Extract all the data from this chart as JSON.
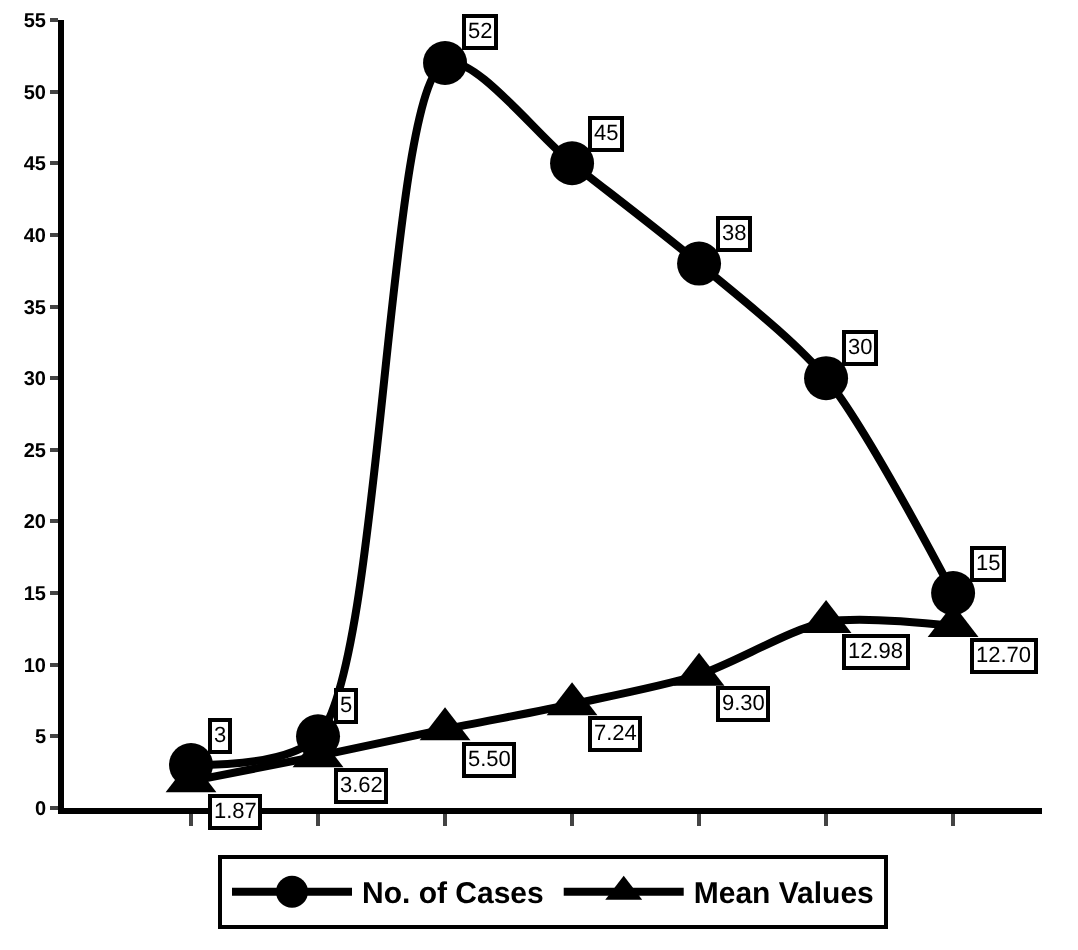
{
  "chart_data": {
    "type": "line",
    "categories": [
      null,
      null,
      null,
      null,
      null,
      null,
      null
    ],
    "series": [
      {
        "name": "No. of Cases",
        "color": "#000000",
        "marker": "circle",
        "values": [
          3,
          5,
          52,
          45,
          38,
          30,
          15
        ],
        "value_labels": [
          "3",
          "5",
          "52",
          "45",
          "38",
          "30",
          "15"
        ]
      },
      {
        "name": "Mean Values",
        "color": "#000000",
        "marker": "triangle",
        "values": [
          1.87,
          3.62,
          5.5,
          7.24,
          9.3,
          12.98,
          12.7
        ],
        "value_labels": [
          "1.87",
          "3.62",
          "5.50",
          "7.24",
          "9.30",
          "12.98",
          "12.70"
        ]
      }
    ],
    "ylim": [
      0,
      55
    ],
    "yticks": [
      0,
      5,
      10,
      15,
      20,
      25,
      30,
      35,
      40,
      45,
      50,
      55
    ],
    "grid": false,
    "legend": "bottom",
    "line_style": "solid",
    "tick_labels": "y"
  }
}
